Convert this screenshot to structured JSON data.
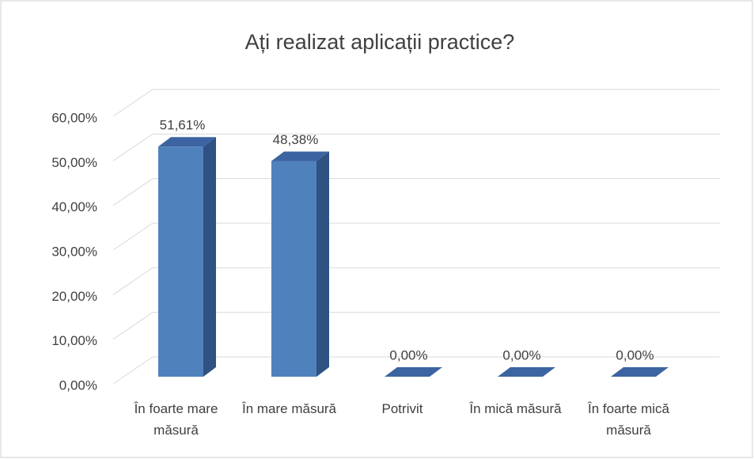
{
  "chart_data": {
    "type": "bar3d",
    "title": "Ați realizat aplicații practice?",
    "categories": [
      "În foarte mare măsură",
      "În mare măsură",
      "Potrivit",
      "În mică măsură",
      "În foarte mică măsură"
    ],
    "values": [
      51.61,
      48.38,
      0,
      0,
      0
    ],
    "value_labels": [
      "51,61%",
      "48,38%",
      "0,00%",
      "0,00%",
      "0,00%"
    ],
    "color": "#4f81bd",
    "ylim": [
      0,
      60
    ],
    "yticks": [
      {
        "value": 0,
        "label": "0,00%"
      },
      {
        "value": 10,
        "label": "10,00%"
      },
      {
        "value": 20,
        "label": "20,00%"
      },
      {
        "value": 30,
        "label": "30,00%"
      },
      {
        "value": 40,
        "label": "40,00%"
      },
      {
        "value": 50,
        "label": "50,00%"
      },
      {
        "value": 60,
        "label": "60,00%"
      }
    ],
    "grid": true
  }
}
